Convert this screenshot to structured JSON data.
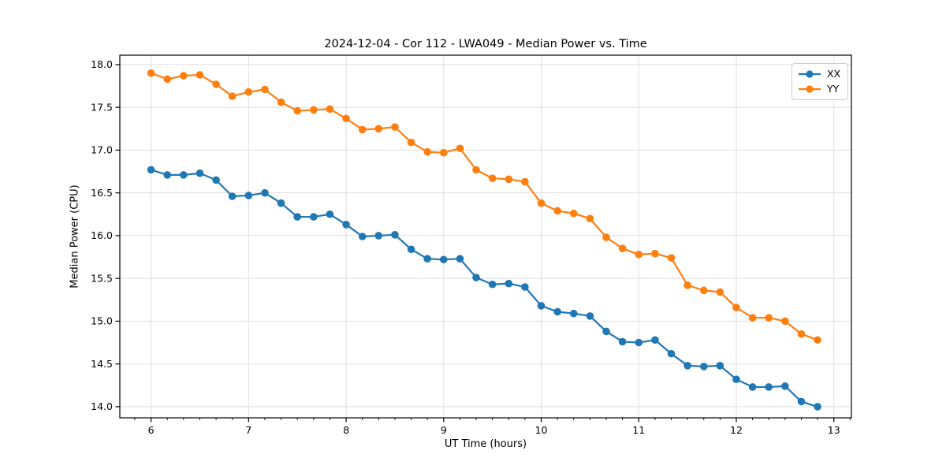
{
  "chart_data": {
    "type": "line",
    "title": "2024-12-04 - Cor 112 - LWA049 - Median Power vs. Time",
    "xlabel": "UT Time (hours)",
    "ylabel": "Median Power (CPU)",
    "x": [
      6.0,
      6.167,
      6.333,
      6.5,
      6.667,
      6.833,
      7.0,
      7.167,
      7.333,
      7.5,
      7.667,
      7.833,
      8.0,
      8.167,
      8.333,
      8.5,
      8.667,
      8.833,
      9.0,
      9.167,
      9.333,
      9.5,
      9.667,
      9.833,
      10.0,
      10.167,
      10.333,
      10.5,
      10.667,
      10.833,
      11.0,
      11.167,
      11.333,
      11.5,
      11.667,
      11.833,
      12.0,
      12.167,
      12.333,
      12.5,
      12.667,
      12.833
    ],
    "series": [
      {
        "name": "XX",
        "color": "#1f77b4",
        "values": [
          16.77,
          16.71,
          16.71,
          16.73,
          16.65,
          16.46,
          16.47,
          16.5,
          16.38,
          16.22,
          16.22,
          16.25,
          16.13,
          15.99,
          16.0,
          16.01,
          15.84,
          15.73,
          15.72,
          15.73,
          15.51,
          15.43,
          15.44,
          15.4,
          15.18,
          15.11,
          15.09,
          15.06,
          14.88,
          14.76,
          14.75,
          14.78,
          14.62,
          14.48,
          14.47,
          14.48,
          14.32,
          14.23,
          14.23,
          14.24,
          14.06,
          14.0
        ]
      },
      {
        "name": "YY",
        "color": "#ff7f0e",
        "values": [
          17.9,
          17.83,
          17.87,
          17.88,
          17.77,
          17.63,
          17.68,
          17.71,
          17.56,
          17.46,
          17.47,
          17.48,
          17.37,
          17.24,
          17.25,
          17.27,
          17.09,
          16.98,
          16.97,
          17.02,
          16.77,
          16.67,
          16.66,
          16.63,
          16.38,
          16.29,
          16.26,
          16.2,
          15.98,
          15.85,
          15.78,
          15.79,
          15.74,
          15.42,
          15.36,
          15.34,
          15.16,
          15.04,
          15.04,
          15.0,
          14.85,
          14.78
        ]
      }
    ],
    "xlim": [
      5.68,
      13.18
    ],
    "ylim": [
      13.87,
      18.11
    ],
    "x_ticks": [
      6,
      7,
      8,
      9,
      10,
      11,
      12,
      13
    ],
    "x_tick_labels": [
      "6",
      "7",
      "8",
      "9",
      "10",
      "11",
      "12",
      "13"
    ],
    "x_minor_tick_step": 0.166667,
    "y_ticks": [
      14.0,
      14.5,
      15.0,
      15.5,
      16.0,
      16.5,
      17.0,
      17.5,
      18.0
    ],
    "y_tick_labels": [
      "14.0",
      "14.5",
      "15.0",
      "15.5",
      "16.0",
      "16.5",
      "17.0",
      "17.5",
      "18.0"
    ],
    "grid": true,
    "grid_color": "#dedede",
    "spine_color": "#000000",
    "background": "#ffffff",
    "legend_position": "upper right",
    "marker": "circle",
    "marker_radius": 4.8,
    "line_width": 2.2
  }
}
